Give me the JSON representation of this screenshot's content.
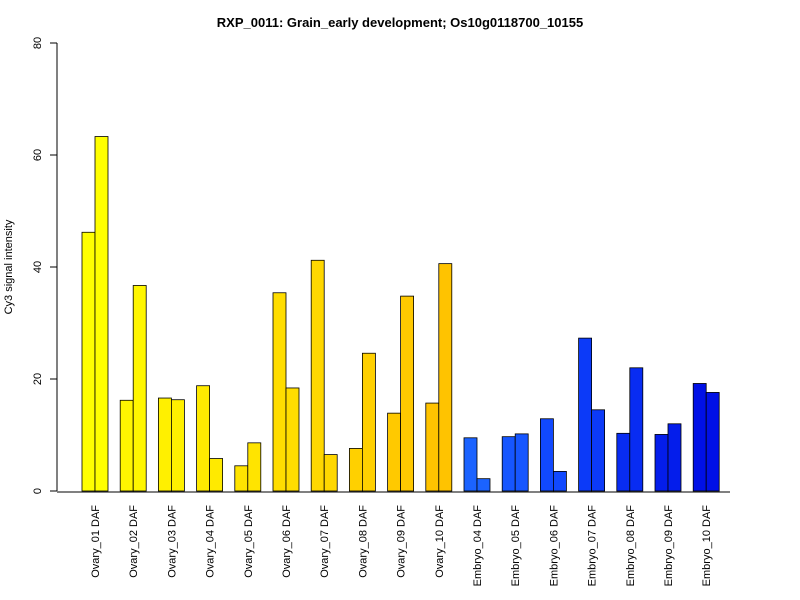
{
  "chart_data": {
    "type": "bar",
    "title": "RXP_0011: Grain_early development; Os10g0118700_10155",
    "xlabel": "",
    "ylabel": "Cy3 signal intensity",
    "ylim": [
      0,
      80
    ],
    "yticks": [
      0,
      20,
      40,
      60,
      80
    ],
    "grid": false,
    "categories": [
      "Ovary_01 DAF",
      "Ovary_02 DAF",
      "Ovary_03 DAF",
      "Ovary_04 DAF",
      "Ovary_05 DAF",
      "Ovary_06 DAF",
      "Ovary_07 DAF",
      "Ovary_08 DAF",
      "Ovary_09 DAF",
      "Ovary_10 DAF",
      "Embryo_04 DAF",
      "Embryo_05 DAF",
      "Embryo_06 DAF",
      "Embryo_07 DAF",
      "Embryo_08 DAF",
      "Embryo_09 DAF",
      "Embryo_10 DAF"
    ],
    "colors": [
      "#FFFF00",
      "#FFF600",
      "#FFF000",
      "#FFEA00",
      "#FFE400",
      "#FFDD00",
      "#FFD700",
      "#FFD000",
      "#FFC900",
      "#FFC300",
      "#1B63FF",
      "#1656FF",
      "#1149FF",
      "#0C3AF8",
      "#082CF2",
      "#041DEB",
      "#0010E6"
    ],
    "series": [
      {
        "values": [
          46.2,
          16.2,
          16.6,
          18.8,
          4.5,
          35.4,
          41.2,
          7.6,
          13.9,
          15.7,
          9.5,
          9.7,
          12.9,
          27.3,
          10.3,
          10.1,
          19.2
        ]
      },
      {
        "values": [
          63.3,
          36.7,
          16.3,
          5.8,
          8.6,
          18.4,
          6.5,
          24.6,
          34.8,
          40.6,
          2.2,
          10.2,
          3.5,
          14.5,
          22.0,
          12.0,
          17.6
        ]
      }
    ]
  }
}
